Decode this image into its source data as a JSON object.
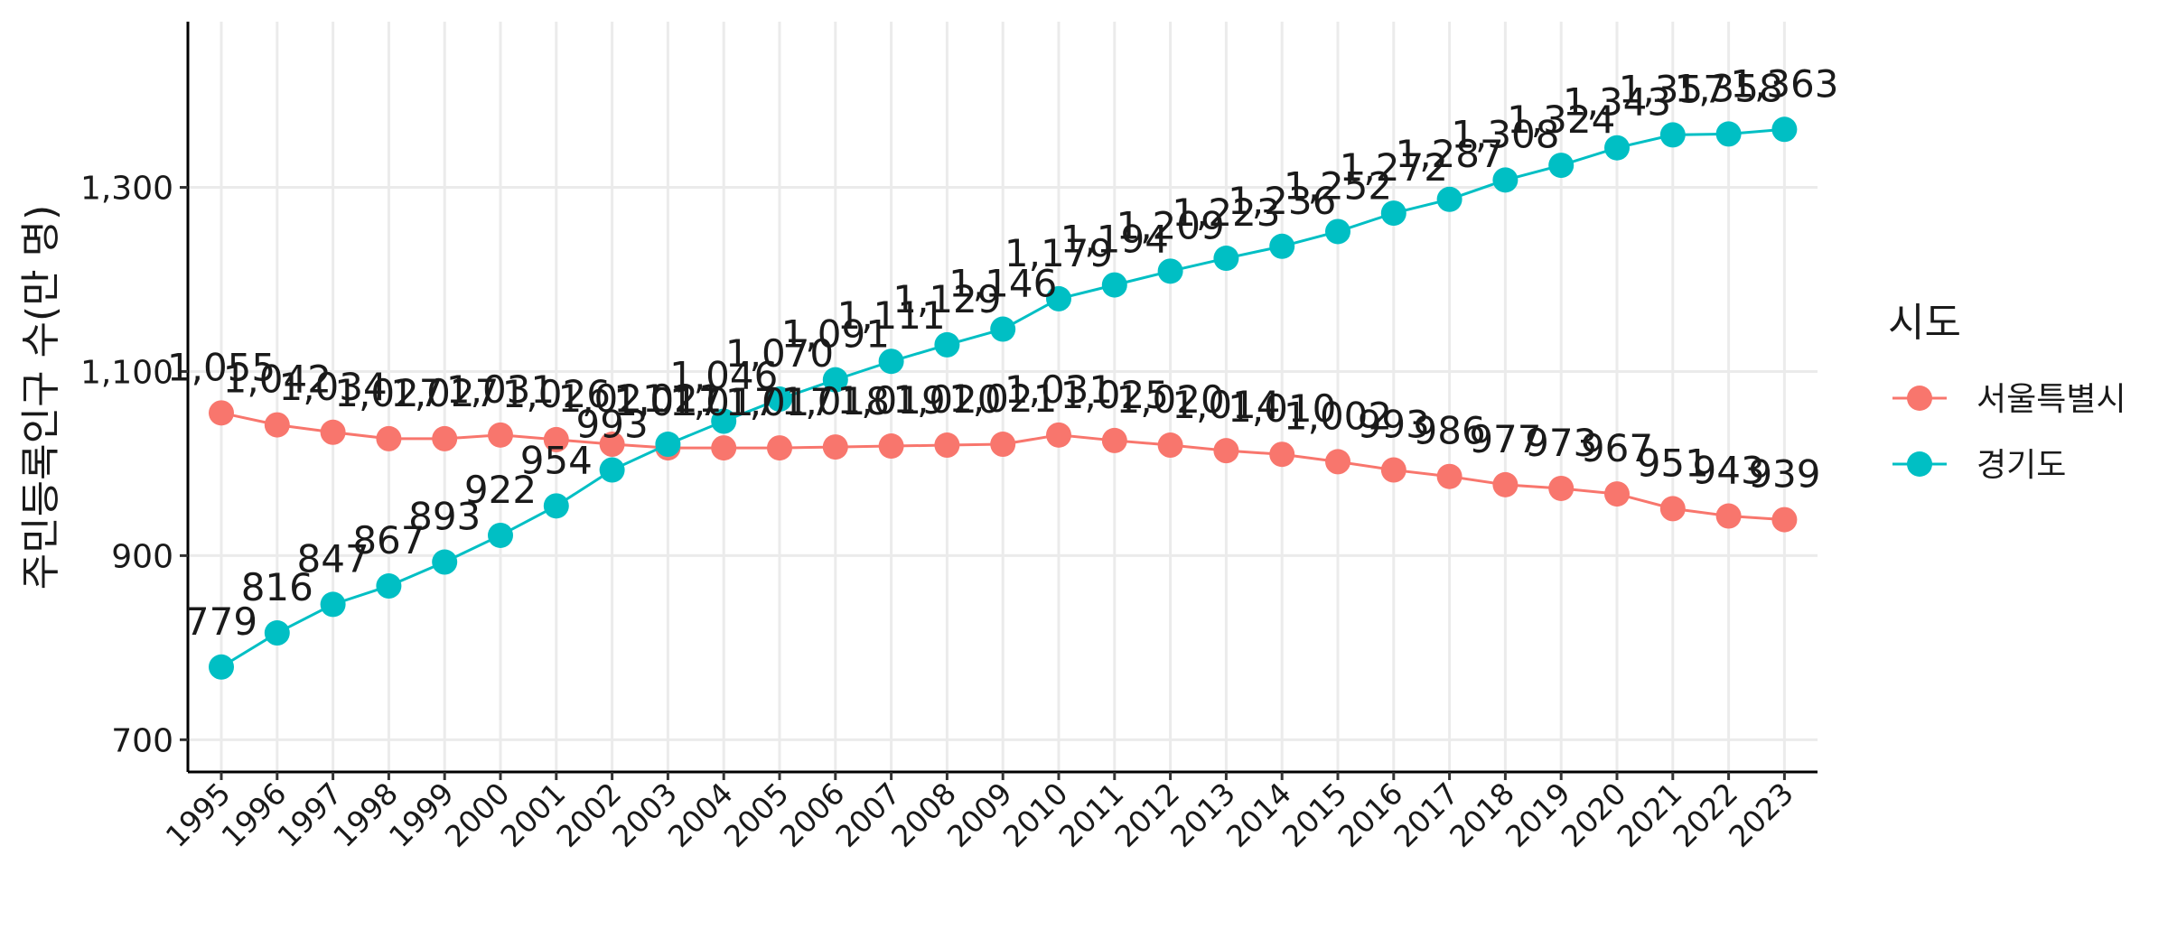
{
  "chart_data": {
    "type": "line",
    "title": "",
    "xlabel": "",
    "ylabel": "주민등록인구 수(만 명)",
    "x": [
      1995,
      1996,
      1997,
      1998,
      1999,
      2000,
      2001,
      2002,
      2003,
      2004,
      2005,
      2006,
      2007,
      2008,
      2009,
      2010,
      2011,
      2012,
      2013,
      2014,
      2015,
      2016,
      2017,
      2018,
      2019,
      2020,
      2021,
      2022,
      2023
    ],
    "ylim": [
      665,
      1480
    ],
    "yticks": [
      700,
      900,
      1100,
      1300
    ],
    "ytick_labels": [
      "700",
      "900",
      "1,100",
      "1,300"
    ],
    "grid": true,
    "legend": {
      "title": "시도",
      "placement": "right"
    },
    "series": [
      {
        "name": "서울특별시",
        "color": "#F8766D",
        "values": [
          1055,
          1042,
          1034,
          1027,
          1027,
          1031,
          1026,
          1021,
          1017,
          1017,
          1017,
          1018,
          1019,
          1020,
          1021,
          1031,
          1025,
          1020,
          1014,
          1010,
          1002,
          993,
          986,
          977,
          973,
          967,
          951,
          943,
          939
        ],
        "labels": [
          "1,055",
          "1,042",
          "1,034",
          "1,027",
          "1,027",
          "1,031",
          "1,026",
          "1,021",
          "1,017",
          "1,017",
          "1,017",
          "1,018",
          "1,019",
          "1,020",
          "1,021",
          "1,031",
          "1,025",
          "1,020",
          "1,014",
          "1,010",
          "1,002",
          "993",
          "986",
          "977",
          "973",
          "967",
          "951",
          "943",
          "939"
        ]
      },
      {
        "name": "경기도",
        "color": "#00BFC4",
        "values": [
          779,
          816,
          847,
          867,
          893,
          922,
          954,
          993,
          1021,
          1046,
          1070,
          1091,
          1111,
          1129,
          1146,
          1179,
          1194,
          1209,
          1223,
          1236,
          1252,
          1272,
          1287,
          1308,
          1324,
          1343,
          1357,
          1358,
          1363
        ],
        "labels": [
          "779",
          "816",
          "847",
          "867",
          "893",
          "922",
          "954",
          "993",
          "1,021",
          "1,046",
          "1,070",
          "1,091",
          "1,111",
          "1,129",
          "1,146",
          "1,179",
          "1,194",
          "1,209",
          "1,223",
          "1,236",
          "1,252",
          "1,272",
          "1,287",
          "1,308",
          "1,324",
          "1,343",
          "1,357",
          "1,358",
          "1,363"
        ]
      }
    ]
  }
}
